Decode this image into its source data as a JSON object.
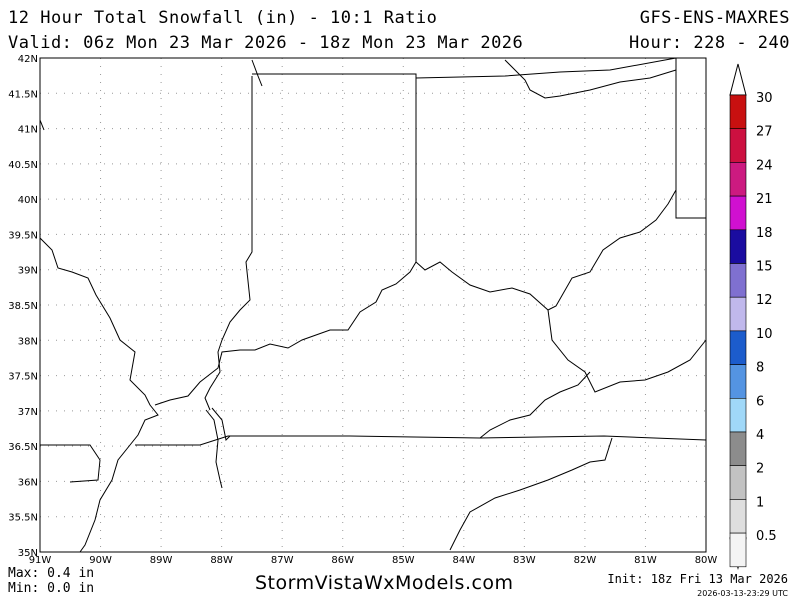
{
  "header": {
    "title": "12 Hour Total Snowfall (in) - 10:1 Ratio",
    "valid": "Valid: 06z Mon 23 Mar 2026 - 18z Mon 23 Mar 2026",
    "model": "GFS-ENS-MAXRES",
    "hour": "Hour: 228 - 240"
  },
  "map": {
    "lat_labels": [
      "42N",
      "41.5N",
      "41N",
      "40.5N",
      "40N",
      "39.5N",
      "39N",
      "38.5N",
      "38N",
      "37.5N",
      "37N",
      "36.5N",
      "36N",
      "35.5N",
      "35N"
    ],
    "lon_labels": [
      "91W",
      "90W",
      "89W",
      "88W",
      "87W",
      "86W",
      "85W",
      "84W",
      "83W",
      "82W",
      "81W",
      "80W"
    ]
  },
  "colorbar": {
    "levels": [
      "30",
      "27",
      "24",
      "21",
      "18",
      "15",
      "12",
      "10",
      "8",
      "6",
      "4",
      "2",
      "1",
      "0.5"
    ],
    "colors": [
      "#c81010",
      "#cc1040",
      "#cc1a80",
      "#d010d0",
      "#1a0ca0",
      "#7f70d0",
      "#c0b8ec",
      "#1c5ccc",
      "#5494e2",
      "#a0d8f8",
      "#8c8c8c",
      "#c2c2c2",
      "#dedede",
      "#f4f4f4"
    ]
  },
  "footer": {
    "max": "Max: 0.4 in",
    "min": "Min: 0.0 in",
    "brand": "StormVistaWxModels.com",
    "init": "Init: 18z Fri 13 Mar 2026",
    "timestamp": "2026-03-13-23:29 UTC"
  }
}
